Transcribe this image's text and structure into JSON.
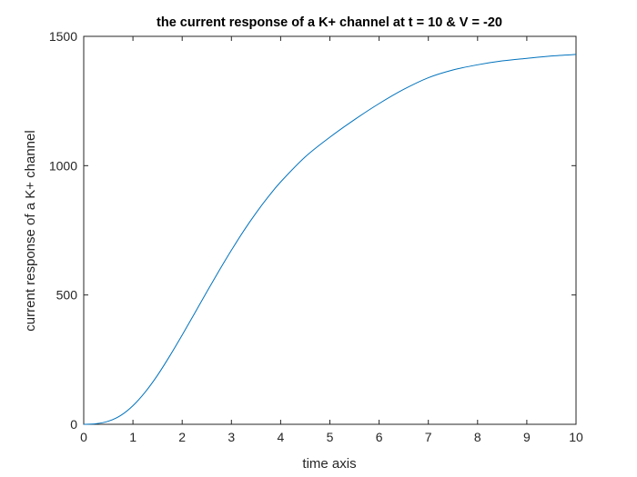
{
  "chart_data": {
    "type": "line",
    "title": "the current response of a K+ channel at t = 10 & V = -20",
    "xlabel": "time axis",
    "ylabel": "current response of a K+ channel",
    "xlim": [
      0,
      10
    ],
    "ylim": [
      0,
      1500
    ],
    "xticks": [
      0,
      1,
      2,
      3,
      4,
      5,
      6,
      7,
      8,
      9,
      10
    ],
    "yticks": [
      0,
      500,
      1000,
      1500
    ],
    "xtick_labels": [
      "0",
      "1",
      "2",
      "3",
      "4",
      "5",
      "6",
      "7",
      "8",
      "9",
      "10"
    ],
    "ytick_labels": [
      "0",
      "500",
      "1000",
      "1500"
    ],
    "grid": false,
    "line_color": "#0072bd",
    "series": [
      {
        "name": "current response",
        "x": [
          0,
          0.25,
          0.5,
          0.75,
          1.0,
          1.25,
          1.5,
          1.75,
          2.0,
          2.25,
          2.5,
          2.75,
          3.0,
          3.25,
          3.5,
          3.75,
          4.0,
          4.5,
          5.0,
          5.5,
          6.0,
          6.5,
          7.0,
          7.5,
          8.0,
          8.5,
          9.0,
          9.5,
          10.0
        ],
        "values": [
          0,
          2,
          12,
          34,
          72,
          125,
          190,
          265,
          345,
          428,
          512,
          594,
          673,
          748,
          817,
          880,
          937,
          1034,
          1110,
          1178,
          1240,
          1295,
          1340,
          1370,
          1390,
          1405,
          1415,
          1424,
          1430
        ]
      }
    ]
  }
}
